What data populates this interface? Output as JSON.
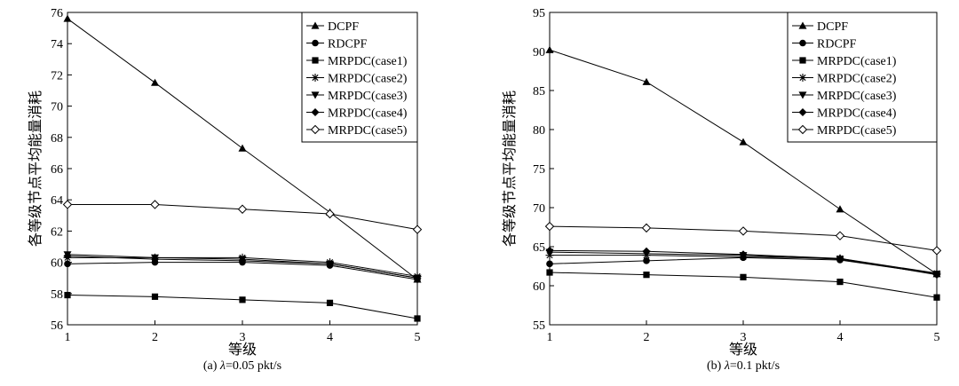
{
  "chart_data": [
    {
      "type": "line",
      "caption_prefix": "(a) ",
      "caption_lambda": "λ",
      "caption_suffix": "=0.05 pkt/s",
      "xlabel": "等级",
      "ylabel": "各等级节点平均能量消耗",
      "x": [
        1,
        2,
        3,
        4,
        5
      ],
      "xlim": [
        1,
        5
      ],
      "ylim": [
        56,
        76
      ],
      "yticks": [
        56,
        58,
        60,
        62,
        64,
        66,
        68,
        70,
        72,
        74,
        76
      ],
      "legend_position": "top-right",
      "grid": false,
      "series": [
        {
          "name": "DCPF",
          "marker": "triangle",
          "values": [
            75.6,
            71.5,
            67.3,
            63.2,
            58.9
          ]
        },
        {
          "name": "RDCPF",
          "marker": "circle",
          "values": [
            59.9,
            60.0,
            60.0,
            59.8,
            58.9
          ]
        },
        {
          "name": "MRPDC(case1)",
          "marker": "square",
          "values": [
            57.9,
            57.8,
            57.6,
            57.4,
            56.4
          ]
        },
        {
          "name": "MRPDC(case2)",
          "marker": "asterisk",
          "values": [
            60.3,
            60.3,
            60.3,
            60.0,
            59.1
          ]
        },
        {
          "name": "MRPDC(case3)",
          "marker": "triangle-down",
          "values": [
            60.5,
            60.3,
            60.2,
            59.9,
            59.0
          ]
        },
        {
          "name": "MRPDC(case4)",
          "marker": "diamond",
          "values": [
            60.4,
            60.2,
            60.1,
            59.9,
            59.0
          ]
        },
        {
          "name": "MRPDC(case5)",
          "marker": "diamond-open",
          "values": [
            63.7,
            63.7,
            63.4,
            63.1,
            62.1
          ]
        }
      ]
    },
    {
      "type": "line",
      "caption_prefix": "(b) ",
      "caption_lambda": "λ",
      "caption_suffix": "=0.1 pkt/s",
      "xlabel": "等级",
      "ylabel": "各等级节点平均能量消耗",
      "x": [
        1,
        2,
        3,
        4,
        5
      ],
      "xlim": [
        1,
        5
      ],
      "ylim": [
        55,
        95
      ],
      "yticks": [
        55,
        60,
        65,
        70,
        75,
        80,
        85,
        90,
        95
      ],
      "legend_position": "top-right",
      "grid": false,
      "series": [
        {
          "name": "DCPF",
          "marker": "triangle",
          "values": [
            90.2,
            86.1,
            78.4,
            69.8,
            61.5
          ]
        },
        {
          "name": "RDCPF",
          "marker": "circle",
          "values": [
            62.8,
            63.2,
            63.6,
            63.3,
            61.5
          ]
        },
        {
          "name": "MRPDC(case1)",
          "marker": "square",
          "values": [
            61.7,
            61.4,
            61.1,
            60.5,
            58.5
          ]
        },
        {
          "name": "MRPDC(case2)",
          "marker": "asterisk",
          "values": [
            63.9,
            63.9,
            63.7,
            63.5,
            61.6
          ]
        },
        {
          "name": "MRPDC(case3)",
          "marker": "triangle-down",
          "values": [
            64.3,
            64.1,
            63.9,
            63.4,
            61.5
          ]
        },
        {
          "name": "MRPDC(case4)",
          "marker": "diamond",
          "values": [
            64.5,
            64.4,
            64.0,
            63.5,
            61.4
          ]
        },
        {
          "name": "MRPDC(case5)",
          "marker": "diamond-open",
          "values": [
            67.6,
            67.4,
            67.0,
            66.4,
            64.5
          ]
        }
      ]
    }
  ]
}
